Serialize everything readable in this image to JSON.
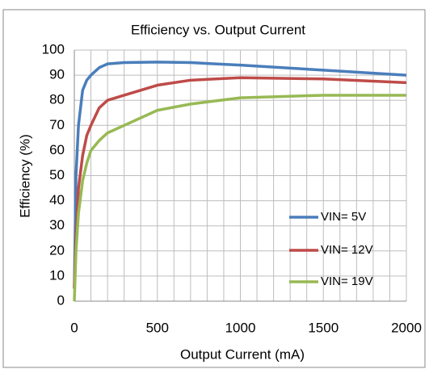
{
  "chart_data": {
    "type": "line",
    "title": "Efficiency vs. Output Current",
    "x_label": "Output Current (mA)",
    "y_label": "Efficiency (%)",
    "xlim": [
      0,
      2000
    ],
    "xticks": [
      0,
      500,
      1000,
      1500,
      2000
    ],
    "xgrid": [
      0,
      100,
      200,
      300,
      400,
      500,
      600,
      700,
      800,
      900,
      1000,
      1100,
      1200,
      1300,
      1400,
      1500,
      1600,
      1700,
      1800,
      1900,
      2000
    ],
    "ylim": [
      0,
      100
    ],
    "yticks": [
      0,
      10,
      20,
      30,
      40,
      50,
      60,
      70,
      80,
      90,
      100
    ],
    "grid": true,
    "legend": "lower right",
    "series": [
      {
        "name": "VIN= 5V",
        "color": "#4a7ebb",
        "x": [
          0,
          10,
          25,
          50,
          75,
          100,
          150,
          200,
          300,
          500,
          700,
          1000,
          1500,
          2000
        ],
        "values": [
          5,
          50,
          70,
          84,
          88,
          90,
          93,
          94.5,
          95,
          95.2,
          95,
          94,
          92,
          90
        ]
      },
      {
        "name": "VIN= 12V",
        "color": "#be4b48",
        "x": [
          0,
          10,
          25,
          50,
          75,
          100,
          150,
          200,
          300,
          500,
          700,
          1000,
          1500,
          2000
        ],
        "values": [
          5,
          25,
          45,
          58,
          66,
          70,
          77,
          80,
          82,
          86,
          88,
          89,
          88.5,
          87
        ]
      },
      {
        "name": "VIN= 19V",
        "color": "#98b954",
        "x": [
          0,
          10,
          25,
          50,
          75,
          100,
          150,
          200,
          300,
          500,
          700,
          1000,
          1500,
          2000
        ],
        "values": [
          0,
          20,
          35,
          48,
          55,
          60,
          64,
          67,
          70,
          76,
          78.5,
          81,
          82,
          82
        ]
      }
    ]
  }
}
